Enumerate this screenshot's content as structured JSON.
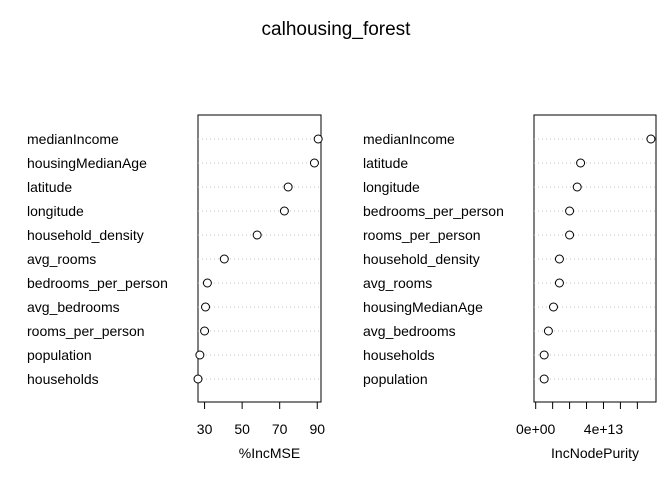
{
  "title": "calhousing_forest",
  "chart_data": [
    {
      "type": "scatter",
      "xlabel": "%IncMSE",
      "ylabel": "",
      "xlim": [
        26.5,
        92
      ],
      "xticks": [
        30,
        50,
        70,
        90
      ],
      "xtick_labels": [
        "30",
        "50",
        "70",
        "90"
      ],
      "grid": "dotted horizontal lines",
      "categories": [
        "medianIncome",
        "housingMedianAge",
        "latitude",
        "longitude",
        "household_density",
        "avg_rooms",
        "bedrooms_per_person",
        "avg_bedrooms",
        "rooms_per_person",
        "population",
        "households"
      ],
      "values": [
        90.5,
        88.5,
        74.5,
        72.5,
        58,
        40.5,
        31.5,
        30.5,
        30,
        27.5,
        26.5
      ]
    },
    {
      "type": "scatter",
      "xlabel": "IncNodePurity",
      "ylabel": "",
      "xlim": [
        -1000000000000.0,
        71000000000000.0
      ],
      "xticks": [
        0,
        10000000000000.0,
        20000000000000.0,
        30000000000000.0,
        40000000000000.0,
        50000000000000.0,
        60000000000000.0
      ],
      "xtick_labels": [
        "0e+00",
        "",
        "",
        "",
        "4e+13",
        "",
        ""
      ],
      "grid": "dotted horizontal lines",
      "categories": [
        "medianIncome",
        "latitude",
        "longitude",
        "bedrooms_per_person",
        "rooms_per_person",
        "household_density",
        "avg_rooms",
        "housingMedianAge",
        "avg_bedrooms",
        "households",
        "population"
      ],
      "values": [
        68000000000000.0,
        26500000000000.0,
        24500000000000.0,
        20000000000000.0,
        20000000000000.0,
        14000000000000.0,
        14000000000000.0,
        10500000000000.0,
        7500000000000.0,
        5000000000000.0,
        5000000000000.0
      ]
    }
  ]
}
